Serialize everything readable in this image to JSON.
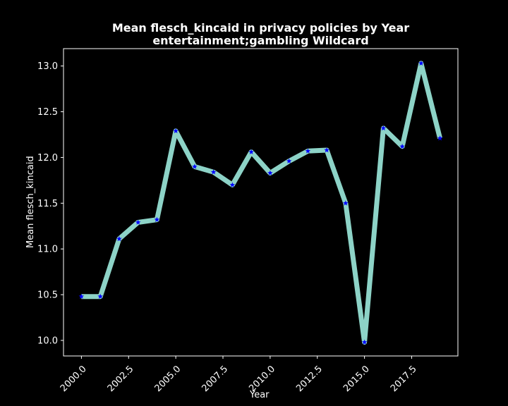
{
  "chart_data": {
    "type": "line",
    "title": "Mean flesch_kincaid in privacy policies by Year",
    "subtitle": "entertainment;gambling Wildcard",
    "xlabel": "Year",
    "ylabel": "Mean flesch_kincaid",
    "xlim": [
      1999.05,
      2019.95
    ],
    "ylim": [
      9.83,
      13.19
    ],
    "xticks": [
      "2000.0",
      "2002.5",
      "2005.0",
      "2007.5",
      "2010.0",
      "2012.5",
      "2015.0",
      "2017.5"
    ],
    "yticks": [
      "10.0",
      "10.5",
      "11.0",
      "11.5",
      "12.0",
      "12.5",
      "13.0"
    ],
    "grid": false,
    "series": [
      {
        "line_color": "#8dd3c7",
        "marker_color": "#0000ff",
        "marker": "star",
        "x": [
          2000,
          2001,
          2002,
          2003,
          2004,
          2005,
          2006,
          2007,
          2008,
          2009,
          2010,
          2011,
          2012,
          2013,
          2014,
          2015,
          2016,
          2017,
          2018,
          2019
        ],
        "y": [
          10.48,
          10.48,
          11.11,
          11.29,
          11.32,
          12.29,
          11.9,
          11.84,
          11.7,
          12.06,
          11.83,
          11.96,
          12.07,
          12.08,
          11.5,
          9.98,
          12.32,
          12.12,
          13.03,
          12.21
        ]
      }
    ]
  }
}
